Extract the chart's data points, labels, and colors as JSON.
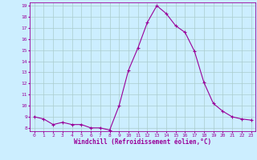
{
  "x": [
    0,
    1,
    2,
    3,
    4,
    5,
    6,
    7,
    8,
    9,
    10,
    11,
    12,
    13,
    14,
    15,
    16,
    17,
    18,
    19,
    20,
    21,
    22,
    23
  ],
  "y": [
    9.0,
    8.8,
    8.3,
    8.5,
    8.3,
    8.3,
    8.0,
    8.0,
    7.8,
    10.0,
    13.2,
    15.2,
    17.5,
    19.0,
    18.3,
    17.2,
    16.6,
    14.9,
    12.1,
    10.2,
    9.5,
    9.0,
    8.8,
    8.7
  ],
  "xlabel": "Windchill (Refroidissement éolien,°C)",
  "ylim": [
    8,
    19
  ],
  "xlim": [
    0,
    23
  ],
  "yticks": [
    8,
    9,
    10,
    11,
    12,
    13,
    14,
    15,
    16,
    17,
    18,
    19
  ],
  "xticks": [
    0,
    1,
    2,
    3,
    4,
    5,
    6,
    7,
    8,
    9,
    10,
    11,
    12,
    13,
    14,
    15,
    16,
    17,
    18,
    19,
    20,
    21,
    22,
    23
  ],
  "line_color": "#990099",
  "marker": "+",
  "bg_color": "#cceeff",
  "grid_color": "#aacccc",
  "tick_label_color": "#990099",
  "axis_label_color": "#990099"
}
